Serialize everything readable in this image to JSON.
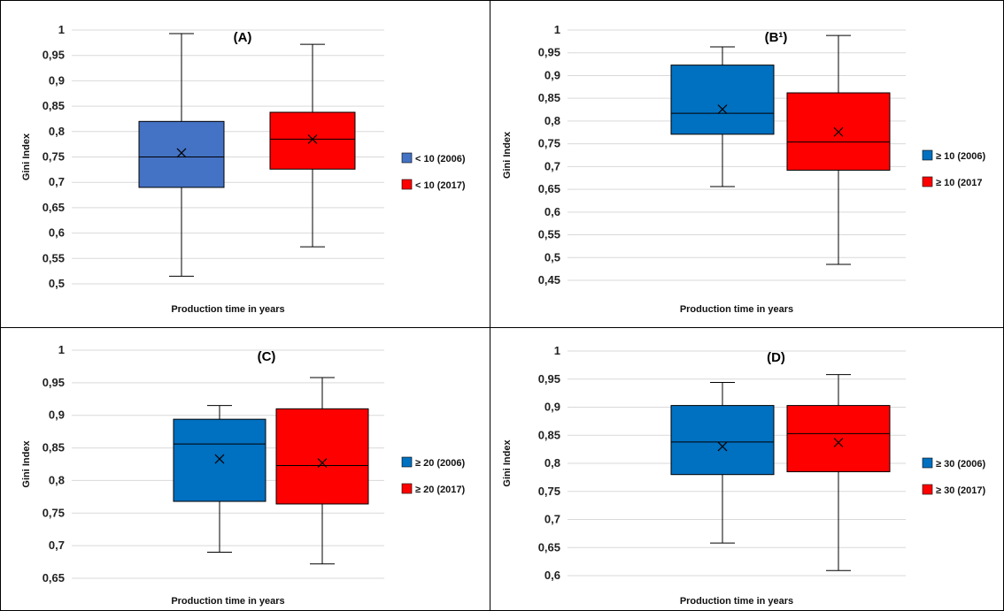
{
  "chart_data": [
    {
      "type": "box",
      "title": "(A)",
      "xlabel": "Production time in years",
      "ylabel": "Gini Index",
      "ylim": [
        0.5,
        1
      ],
      "yticks": [
        "0,5",
        "0,55",
        "0,6",
        "0,65",
        "0,7",
        "0,75",
        "0,8",
        "0,85",
        "0,9",
        "0,95",
        "1"
      ],
      "grid": true,
      "legend_position": "right",
      "series": [
        {
          "name": "< 10 (2006)",
          "color": "#4472c4",
          "min": 0.515,
          "q1": 0.69,
          "median": 0.75,
          "q3": 0.82,
          "max": 0.993,
          "mean": 0.758
        },
        {
          "name": "< 10 (2017)",
          "color": "#ff0000",
          "min": 0.573,
          "q1": 0.726,
          "median": 0.785,
          "q3": 0.838,
          "max": 0.972,
          "mean": 0.785
        }
      ]
    },
    {
      "type": "box",
      "title": "(B¹)",
      "xlabel": "Production time in years",
      "ylabel": "Gini Index",
      "ylim": [
        0.45,
        1
      ],
      "yticks": [
        "0,45",
        "0,5",
        "0,55",
        "0,6",
        "0,65",
        "0,7",
        "0,75",
        "0,8",
        "0,85",
        "0,9",
        "0,95",
        "1"
      ],
      "grid": true,
      "legend_position": "right",
      "series": [
        {
          "name": "≥ 10 (2006)",
          "color": "#0070c0",
          "min": 0.656,
          "q1": 0.771,
          "median": 0.817,
          "q3": 0.923,
          "max": 0.963,
          "mean": 0.826
        },
        {
          "name": "≥ 10 (2017",
          "color": "#ff0000",
          "min": 0.485,
          "q1": 0.692,
          "median": 0.754,
          "q3": 0.862,
          "max": 0.988,
          "mean": 0.776
        }
      ]
    },
    {
      "type": "box",
      "title": "(C)",
      "xlabel": "Production time in years",
      "ylabel": "Gini Index",
      "ylim": [
        0.65,
        1
      ],
      "yticks": [
        "0,65",
        "0,7",
        "0,75",
        "0,8",
        "0,85",
        "0,9",
        "0,95",
        "1"
      ],
      "grid": true,
      "legend_position": "right",
      "series": [
        {
          "name": "≥ 20 (2006)",
          "color": "#0070c0",
          "min": 0.69,
          "q1": 0.768,
          "median": 0.856,
          "q3": 0.894,
          "max": 0.915,
          "mean": 0.833
        },
        {
          "name": "≥ 20 (2017)",
          "color": "#ff0000",
          "min": 0.672,
          "q1": 0.764,
          "median": 0.823,
          "q3": 0.91,
          "max": 0.958,
          "mean": 0.827
        }
      ]
    },
    {
      "type": "box",
      "title": "(D)",
      "xlabel": "Production time in years",
      "ylabel": "Gini Index",
      "ylim": [
        0.6,
        1
      ],
      "yticks": [
        "0,6",
        "0,65",
        "0,7",
        "0,75",
        "0,8",
        "0,85",
        "0,9",
        "0,95",
        "1"
      ],
      "grid": true,
      "legend_position": "right",
      "series": [
        {
          "name": "≥ 30 (2006)",
          "color": "#0070c0",
          "min": 0.658,
          "q1": 0.78,
          "median": 0.838,
          "q3": 0.903,
          "max": 0.944,
          "mean": 0.83
        },
        {
          "name": "≥ 30 (2017)",
          "color": "#ff0000",
          "min": 0.609,
          "q1": 0.785,
          "median": 0.853,
          "q3": 0.903,
          "max": 0.958,
          "mean": 0.837
        }
      ]
    }
  ]
}
